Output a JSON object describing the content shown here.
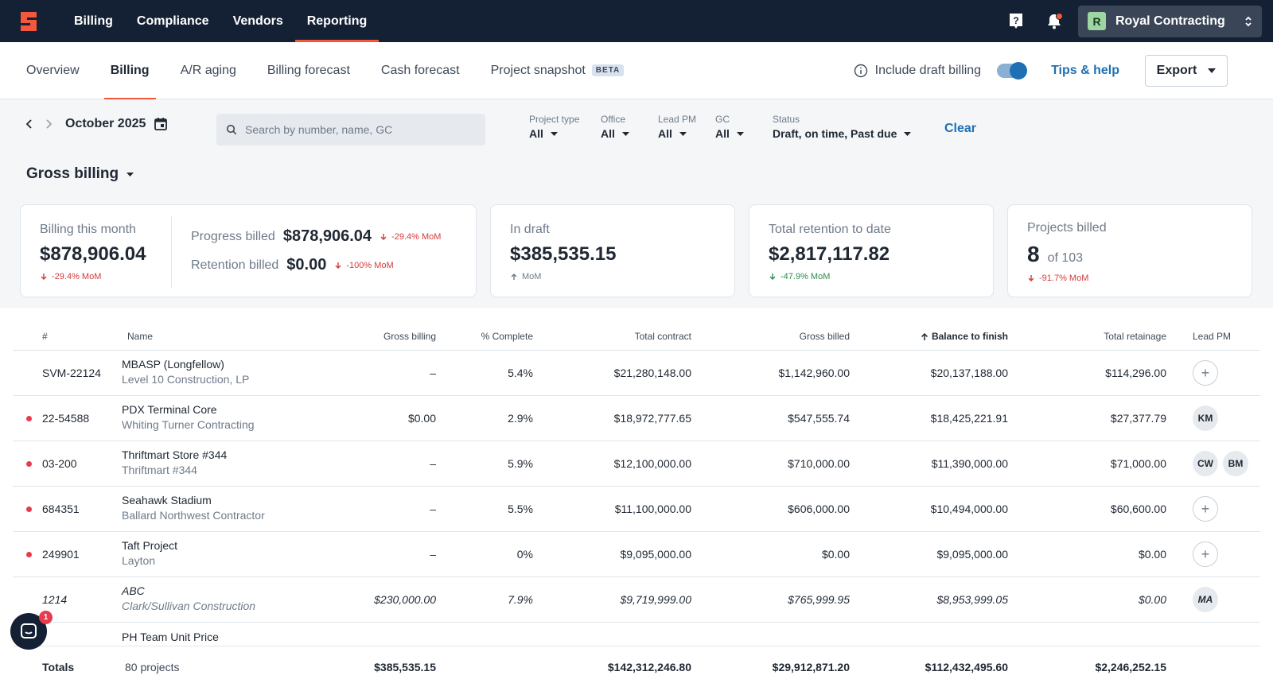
{
  "topnav": {
    "items": [
      "Billing",
      "Compliance",
      "Vendors",
      "Reporting"
    ],
    "active": "Reporting",
    "company": "Royal Contracting",
    "company_initial": "R"
  },
  "subnav": {
    "tabs": [
      "Overview",
      "Billing",
      "A/R aging",
      "Billing forecast",
      "Cash forecast",
      "Project snapshot"
    ],
    "beta": "BETA",
    "active": "Billing",
    "draft_label": "Include draft billing",
    "tips": "Tips & help",
    "export": "Export"
  },
  "filters": {
    "month": "October 2025",
    "search_placeholder": "Search by number, name, GC",
    "project_type": {
      "label": "Project type",
      "value": "All"
    },
    "office": {
      "label": "Office",
      "value": "All"
    },
    "lead_pm": {
      "label": "Lead PM",
      "value": "All"
    },
    "gc": {
      "label": "GC",
      "value": "All"
    },
    "status": {
      "label": "Status",
      "value": "Draft, on time, Past due"
    },
    "clear": "Clear"
  },
  "metric_select": "Gross billing",
  "cards": {
    "billing_month": {
      "label": "Billing this month",
      "value": "$878,906.04",
      "mom": "-29.4% MoM",
      "progress_label": "Progress billed",
      "progress_value": "$878,906.04",
      "progress_mom": "-29.4% MoM",
      "retention_label": "Retention billed",
      "retention_value": "$0.00",
      "retention_mom": "-100% MoM"
    },
    "in_draft": {
      "label": "In draft",
      "value": "$385,535.15",
      "mom": "MoM"
    },
    "retention": {
      "label": "Total retention to date",
      "value": "$2,817,117.82",
      "mom": "-47.9% MoM"
    },
    "projects": {
      "label": "Projects billed",
      "value": "8",
      "of": "of 103",
      "mom": "-91.7% MoM"
    }
  },
  "table": {
    "headers": {
      "num": "#",
      "name": "Name",
      "gross_billing": "Gross billing",
      "pct": "% Complete",
      "total_contract": "Total contract",
      "gross_billed": "Gross billed",
      "balance": "Balance to finish",
      "retainage": "Total retainage",
      "lead_pm": "Lead PM"
    },
    "rows": [
      {
        "num": "SVM-22124",
        "name": "MBASP (Longfellow)",
        "gc": "Level 10 Construction, LP",
        "gross_billing": "–",
        "pct": "5.4%",
        "total_contract": "$21,280,148.00",
        "gross_billed": "$1,142,960.00",
        "balance": "$20,137,188.00",
        "retainage": "$114,296.00",
        "pm": [
          "+"
        ]
      },
      {
        "num": "22-54588",
        "name": "PDX Terminal Core",
        "gc": "Whiting Turner Contracting",
        "gross_billing": "$0.00",
        "pct": "2.9%",
        "total_contract": "$18,972,777.65",
        "gross_billed": "$547,555.74",
        "balance": "$18,425,221.91",
        "retainage": "$27,377.79",
        "pm": [
          "KM"
        ]
      },
      {
        "num": "03-200",
        "name": "Thriftmart Store #344",
        "gc": "Thriftmart #344",
        "gross_billing": "–",
        "pct": "5.9%",
        "total_contract": "$12,100,000.00",
        "gross_billed": "$710,000.00",
        "balance": "$11,390,000.00",
        "retainage": "$71,000.00",
        "pm": [
          "CW",
          "BM"
        ]
      },
      {
        "num": "684351",
        "name": "Seahawk Stadium",
        "gc": "Ballard Northwest Contractor",
        "gross_billing": "–",
        "pct": "5.5%",
        "total_contract": "$11,100,000.00",
        "gross_billed": "$606,000.00",
        "balance": "$10,494,000.00",
        "retainage": "$60,600.00",
        "pm": [
          "+"
        ]
      },
      {
        "num": "249901",
        "name": "Taft Project",
        "gc": "Layton",
        "gross_billing": "–",
        "pct": "0%",
        "total_contract": "$9,095,000.00",
        "gross_billed": "$0.00",
        "balance": "$9,095,000.00",
        "retainage": "$0.00",
        "pm": [
          "+"
        ]
      },
      {
        "num": "1214",
        "name": "ABC",
        "gc": "Clark/Sullivan Construction",
        "gross_billing": "$230,000.00",
        "pct": "7.9%",
        "total_contract": "$9,719,999.00",
        "gross_billed": "$765,999.95",
        "balance": "$8,953,999.05",
        "retainage": "$0.00",
        "pm": [
          "MA"
        ]
      },
      {
        "num": "",
        "name": "PH Team Unit Price",
        "gc": "",
        "gross_billing": "",
        "pct": "",
        "total_contract": "",
        "gross_billed": "",
        "balance": "",
        "retainage": "",
        "pm": []
      }
    ],
    "totals": {
      "label": "Totals",
      "count": "80 projects",
      "gross_billing": "$385,535.15",
      "total_contract": "$142,312,246.80",
      "gross_billed": "$29,912,871.20",
      "balance": "$112,432,495.60",
      "retainage": "$2,246,252.15"
    }
  },
  "chat_badge": "1"
}
